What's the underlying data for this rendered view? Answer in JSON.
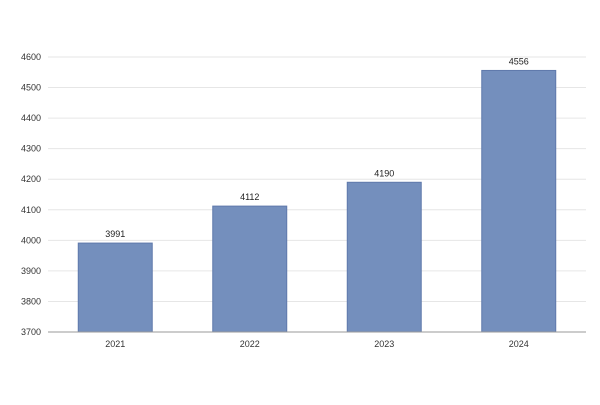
{
  "chart_data": {
    "type": "bar",
    "title": "",
    "xlabel": "",
    "ylabel": "",
    "categories": [
      "2021",
      "2022",
      "2023",
      "2024"
    ],
    "values": [
      3991,
      4112,
      4190,
      4556
    ],
    "data_labels": [
      "3991",
      "4112",
      "4190",
      "4556"
    ],
    "ylim": [
      3700,
      4600
    ],
    "yticks": [
      3700,
      3800,
      3900,
      4000,
      4100,
      4200,
      4300,
      4400,
      4500,
      4600
    ],
    "ytick_labels": [
      "3700",
      "3800",
      "3900",
      "4000",
      "4100",
      "4200",
      "4300",
      "4400",
      "4500",
      "4600"
    ],
    "grid": true,
    "legend": "none",
    "bar_color": "#748fbd"
  }
}
